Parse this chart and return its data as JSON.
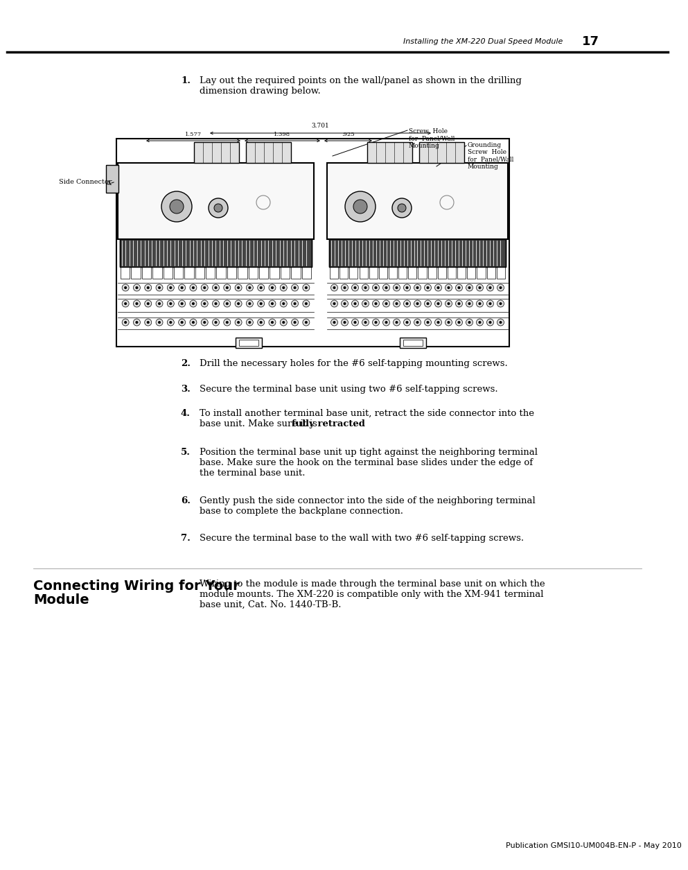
{
  "bg_color": "#ffffff",
  "text_color": "#000000",
  "page_header_text": "Installing the XM-220 Dual Speed Module",
  "page_number": "17",
  "footer_text": "Publication GMSI10-UM004B-EN-P - May 2010",
  "step1_text": "Lay out the required points on the wall/panel as shown in the drilling\ndimension drawing below.",
  "step2_text": "Drill the necessary holes for the #6 self-tapping mounting screws.",
  "step3_text": "Secure the terminal base unit using two #6 self-tapping screws.",
  "step4_line1": "To install another terminal base unit, retract the side connector into the",
  "step4_line2a": "base unit. Make sure it is ",
  "step4_bold": "fully retracted",
  "step4_end": ".",
  "step5_text": "Position the terminal base unit up tight against the neighboring terminal\nbase. Make sure the hook on the terminal base slides under the edge of\nthe terminal base unit.",
  "step6_text": "Gently push the side connector into the side of the neighboring terminal\nbase to complete the backplane connection.",
  "step7_text": "Secure the terminal base to the wall with two #6 self-tapping screws.",
  "section_title_line1": "Connecting Wiring for Your",
  "section_title_line2": "Module",
  "section_body": "Wiring to the module is made through the terminal base unit on which the\nmodule mounts. The XM-220 is compatible only with the XM-941 terminal\nbase unit, Cat. No. 1440-TB-B.",
  "header_font_size": 8,
  "body_font_size": 9.5,
  "label_font_size": 7,
  "diagram_label_font_size": 6.5,
  "section_title_font_size": 14
}
